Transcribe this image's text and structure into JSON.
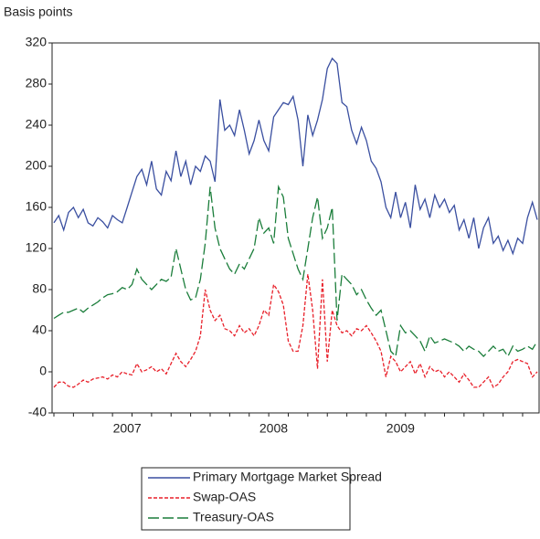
{
  "chart_data": {
    "type": "line",
    "y_label": "Basis points",
    "categories": [
      null,
      null,
      null,
      null,
      null,
      null,
      null,
      null,
      null,
      null,
      null,
      null,
      null,
      null,
      null,
      "2007",
      null,
      null,
      null,
      null,
      null,
      null,
      null,
      null,
      null,
      null,
      null,
      null,
      null,
      null,
      null,
      null,
      null,
      null,
      null,
      null,
      null,
      null,
      null,
      null,
      null,
      null,
      null,
      null,
      null,
      "2008",
      null,
      null,
      null,
      null,
      null,
      null,
      null,
      null,
      null,
      null,
      null,
      null,
      null,
      null,
      null,
      null,
      null,
      null,
      null,
      null,
      null,
      null,
      null,
      null,
      null,
      "2009",
      null,
      null,
      null,
      null,
      null,
      null,
      null,
      null,
      null,
      null,
      null,
      null,
      null,
      null,
      null,
      null,
      null,
      null,
      null,
      null,
      null,
      null,
      null,
      null,
      null,
      null,
      null,
      null
    ],
    "series": [
      {
        "name": "Primary Mortgage Market Spread",
        "color": "#3a4fa0",
        "dash": "solid",
        "values": [
          145,
          152,
          138,
          155,
          160,
          150,
          158,
          145,
          142,
          150,
          146,
          140,
          152,
          148,
          145,
          160,
          175,
          190,
          197,
          182,
          205,
          178,
          172,
          195,
          186,
          215,
          190,
          205,
          182,
          200,
          195,
          210,
          205,
          185,
          265,
          235,
          240,
          230,
          255,
          235,
          212,
          225,
          245,
          225,
          215,
          248,
          255,
          262,
          260,
          268,
          245,
          200,
          250,
          230,
          245,
          265,
          295,
          305,
          300,
          262,
          258,
          235,
          222,
          238,
          225,
          205,
          198,
          185,
          160,
          150,
          175,
          150,
          165,
          140,
          182,
          158,
          168,
          150,
          172,
          160,
          168,
          155,
          162,
          138,
          148,
          130,
          150,
          120,
          140,
          150,
          125,
          132,
          118,
          128,
          115,
          130,
          125,
          150,
          165,
          148
        ]
      },
      {
        "name": "Swap-OAS",
        "color": "#e8202a",
        "dash": "short",
        "values": [
          -15,
          -10,
          -10,
          -14,
          -15,
          -12,
          -8,
          -10,
          -7,
          -6,
          -5,
          -7,
          -3,
          -5,
          0,
          -2,
          -3,
          8,
          0,
          2,
          5,
          0,
          3,
          -2,
          8,
          18,
          10,
          5,
          12,
          20,
          35,
          80,
          60,
          50,
          55,
          42,
          40,
          35,
          45,
          38,
          42,
          35,
          45,
          60,
          55,
          85,
          78,
          65,
          30,
          20,
          20,
          45,
          95,
          60,
          3,
          90,
          10,
          60,
          45,
          38,
          40,
          35,
          42,
          40,
          45,
          38,
          30,
          20,
          -5,
          15,
          10,
          0,
          5,
          10,
          -2,
          8,
          -5,
          5,
          0,
          2,
          -5,
          0,
          -5,
          -10,
          -2,
          -8,
          -15,
          -15,
          -10,
          -5,
          -15,
          -12,
          -5,
          0,
          10,
          12,
          10,
          8,
          -5,
          0
        ]
      },
      {
        "name": "Treasury-OAS",
        "color": "#1a7d3a",
        "dash": "long",
        "values": [
          52,
          55,
          58,
          58,
          60,
          62,
          58,
          62,
          65,
          68,
          72,
          75,
          76,
          78,
          82,
          80,
          85,
          100,
          90,
          85,
          80,
          85,
          90,
          88,
          92,
          120,
          100,
          80,
          70,
          72,
          90,
          125,
          180,
          140,
          120,
          110,
          100,
          95,
          105,
          100,
          110,
          120,
          150,
          135,
          140,
          125,
          180,
          170,
          130,
          115,
          100,
          90,
          120,
          150,
          170,
          130,
          140,
          160,
          50,
          95,
          90,
          85,
          75,
          80,
          70,
          62,
          55,
          60,
          40,
          20,
          15,
          45,
          38,
          40,
          35,
          30,
          20,
          35,
          28,
          30,
          32,
          30,
          28,
          25,
          20,
          25,
          22,
          20,
          15,
          20,
          25,
          20,
          22,
          15,
          25,
          20,
          22,
          25,
          22,
          30
        ]
      }
    ],
    "ylim": [
      -40,
      320
    ],
    "yticks": [
      -40,
      0,
      40,
      80,
      120,
      160,
      200,
      240,
      280,
      320
    ]
  }
}
